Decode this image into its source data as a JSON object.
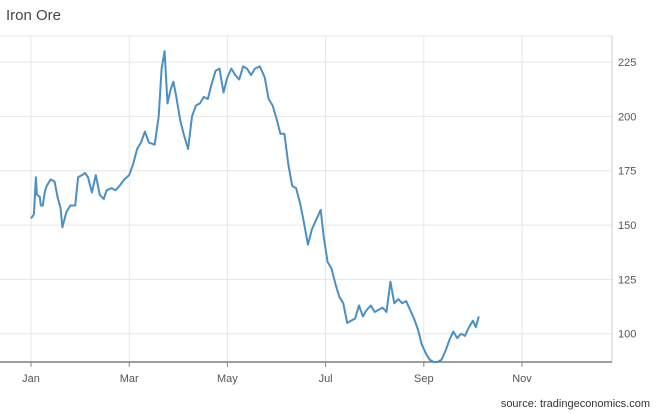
{
  "chart_data": {
    "type": "line",
    "title": "Iron Ore",
    "source": "source: tradingeconomics.com",
    "xlabel": "",
    "ylabel": "",
    "x_ticks": [
      "Jan",
      "Mar",
      "May",
      "Jul",
      "Sep",
      "Nov"
    ],
    "y_ticks": [
      100,
      125,
      150,
      175,
      200,
      225
    ],
    "ylim": [
      87,
      237
    ],
    "grid": true,
    "line_color": "#4a90c4",
    "series": [
      {
        "name": "",
        "points": [
          [
            0,
            153
          ],
          [
            0.03,
            155
          ],
          [
            0.05,
            172
          ],
          [
            0.06,
            164
          ],
          [
            0.09,
            163
          ],
          [
            0.1,
            159
          ],
          [
            0.12,
            159
          ],
          [
            0.14,
            165
          ],
          [
            0.16,
            168
          ],
          [
            0.2,
            171
          ],
          [
            0.24,
            170
          ],
          [
            0.27,
            163
          ],
          [
            0.3,
            158
          ],
          [
            0.32,
            149
          ],
          [
            0.36,
            156
          ],
          [
            0.4,
            159
          ],
          [
            0.45,
            159
          ],
          [
            0.48,
            172
          ],
          [
            0.52,
            173
          ],
          [
            0.55,
            174
          ],
          [
            0.58,
            172
          ],
          [
            0.62,
            165
          ],
          [
            0.66,
            173
          ],
          [
            0.7,
            164
          ],
          [
            0.74,
            162
          ],
          [
            0.77,
            166
          ],
          [
            0.82,
            167
          ],
          [
            0.86,
            166
          ],
          [
            0.9,
            168
          ],
          [
            0.95,
            171
          ],
          [
            1.0,
            173
          ],
          [
            1.04,
            178
          ],
          [
            1.08,
            185
          ],
          [
            1.12,
            188
          ],
          [
            1.16,
            193
          ],
          [
            1.2,
            188
          ],
          [
            1.26,
            187
          ],
          [
            1.3,
            200
          ],
          [
            1.33,
            222
          ],
          [
            1.36,
            230
          ],
          [
            1.39,
            206
          ],
          [
            1.42,
            212
          ],
          [
            1.45,
            216
          ],
          [
            1.48,
            209
          ],
          [
            1.52,
            198
          ],
          [
            1.56,
            191
          ],
          [
            1.6,
            185
          ],
          [
            1.64,
            200
          ],
          [
            1.68,
            205
          ],
          [
            1.72,
            206
          ],
          [
            1.76,
            209
          ],
          [
            1.8,
            208
          ],
          [
            1.84,
            215
          ],
          [
            1.88,
            221
          ],
          [
            1.92,
            222
          ],
          [
            1.96,
            211
          ],
          [
            2.0,
            218
          ],
          [
            2.04,
            222
          ],
          [
            2.08,
            219
          ],
          [
            2.12,
            217
          ],
          [
            2.16,
            223
          ],
          [
            2.2,
            222
          ],
          [
            2.24,
            219
          ],
          [
            2.28,
            222
          ],
          [
            2.33,
            223
          ],
          [
            2.38,
            218
          ],
          [
            2.42,
            208
          ],
          [
            2.46,
            205
          ],
          [
            2.5,
            199
          ],
          [
            2.54,
            192
          ],
          [
            2.58,
            192
          ],
          [
            2.62,
            178
          ],
          [
            2.66,
            168
          ],
          [
            2.7,
            167
          ],
          [
            2.74,
            160
          ],
          [
            2.78,
            151
          ],
          [
            2.82,
            141
          ],
          [
            2.86,
            148
          ],
          [
            2.9,
            152
          ],
          [
            2.95,
            157
          ],
          [
            2.98,
            145
          ],
          [
            3.02,
            133
          ],
          [
            3.06,
            130
          ],
          [
            3.1,
            123
          ],
          [
            3.14,
            117
          ],
          [
            3.18,
            114
          ],
          [
            3.22,
            105
          ],
          [
            3.26,
            106
          ],
          [
            3.3,
            107
          ],
          [
            3.34,
            113
          ],
          [
            3.38,
            108
          ],
          [
            3.42,
            111
          ],
          [
            3.46,
            113
          ],
          [
            3.5,
            110
          ],
          [
            3.54,
            111
          ],
          [
            3.58,
            112
          ],
          [
            3.62,
            110
          ],
          [
            3.66,
            124
          ],
          [
            3.7,
            114
          ],
          [
            3.74,
            116
          ],
          [
            3.78,
            114
          ],
          [
            3.82,
            115
          ],
          [
            3.86,
            111
          ],
          [
            3.9,
            107
          ],
          [
            3.94,
            102
          ],
          [
            3.98,
            95
          ],
          [
            4.02,
            91
          ],
          [
            4.06,
            88
          ],
          [
            4.1,
            87
          ],
          [
            4.14,
            87
          ],
          [
            4.18,
            88
          ],
          [
            4.22,
            92
          ],
          [
            4.26,
            97
          ],
          [
            4.3,
            101
          ],
          [
            4.34,
            98
          ],
          [
            4.38,
            100
          ],
          [
            4.42,
            99
          ],
          [
            4.46,
            103
          ],
          [
            4.5,
            106
          ],
          [
            4.53,
            103
          ],
          [
            4.56,
            108
          ]
        ]
      }
    ]
  }
}
